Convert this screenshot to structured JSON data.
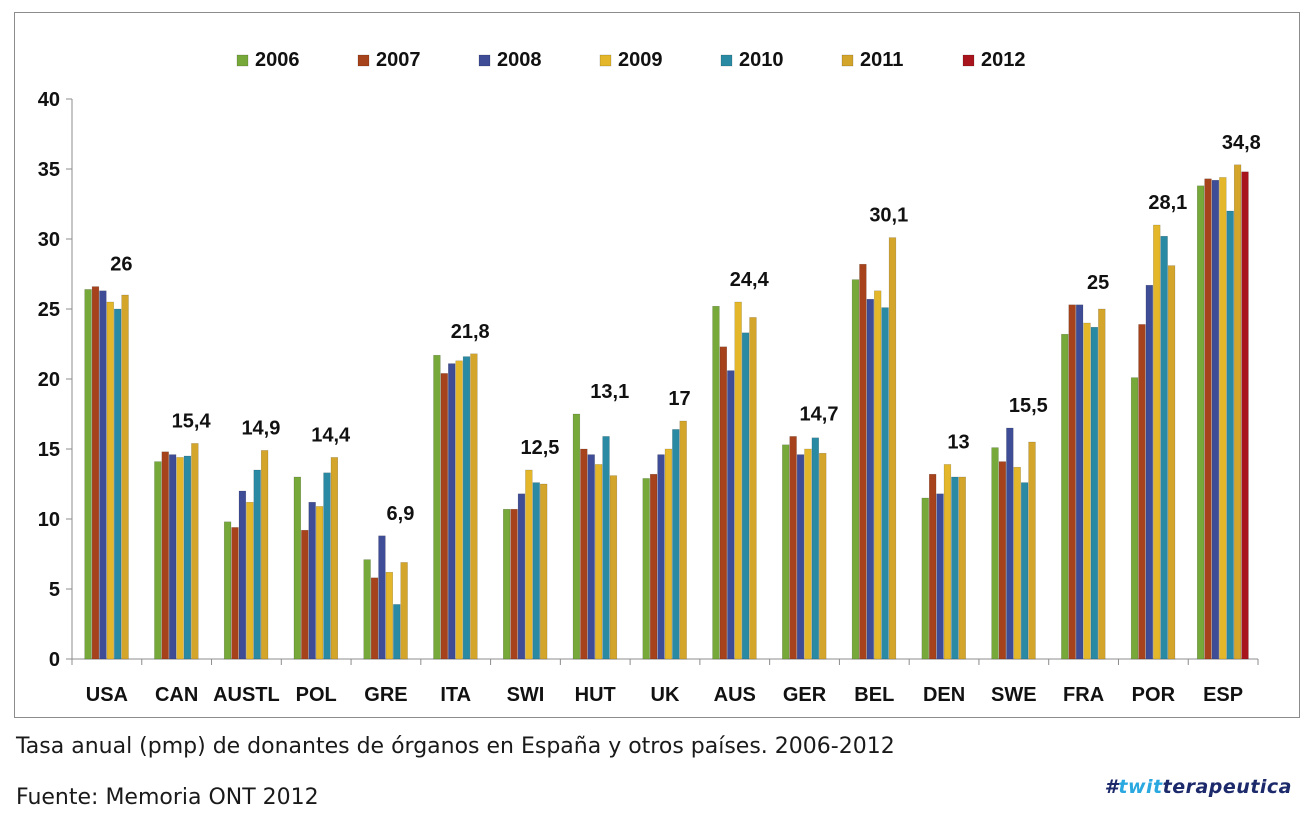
{
  "chart_data": {
    "type": "bar",
    "categories": [
      "USA",
      "CAN",
      "AUSTL",
      "POL",
      "GRE",
      "ITA",
      "SWI",
      "HUT",
      "UK",
      "AUS",
      "GER",
      "BEL",
      "DEN",
      "SWE",
      "FRA",
      "POR",
      "ESP"
    ],
    "series": [
      {
        "name": "2006",
        "color": "#77a83a",
        "values": [
          26.4,
          14.1,
          9.8,
          13.0,
          7.1,
          21.7,
          10.7,
          17.5,
          12.9,
          25.2,
          15.3,
          27.1,
          11.5,
          15.1,
          23.2,
          20.1,
          33.8
        ]
      },
      {
        "name": "2007",
        "color": "#a6431c",
        "values": [
          26.6,
          14.8,
          9.4,
          9.2,
          5.8,
          20.4,
          10.7,
          15.0,
          13.2,
          22.3,
          15.9,
          28.2,
          13.2,
          14.1,
          25.3,
          23.9,
          34.3
        ]
      },
      {
        "name": "2008",
        "color": "#3f4d96",
        "values": [
          26.3,
          14.6,
          12.0,
          11.2,
          8.8,
          21.1,
          11.8,
          14.6,
          14.6,
          20.6,
          14.6,
          25.7,
          11.8,
          16.5,
          25.3,
          26.7,
          34.2
        ]
      },
      {
        "name": "2009",
        "color": "#e3b729",
        "values": [
          25.5,
          14.4,
          11.2,
          10.9,
          6.2,
          21.3,
          13.5,
          13.9,
          15.0,
          25.5,
          15.0,
          26.3,
          13.9,
          13.7,
          24.0,
          31.0,
          34.4
        ]
      },
      {
        "name": "2010",
        "color": "#2a8aa3",
        "values": [
          25.0,
          14.5,
          13.5,
          13.3,
          3.9,
          21.6,
          12.6,
          15.9,
          16.4,
          23.3,
          15.8,
          25.1,
          13.0,
          12.6,
          23.7,
          30.2,
          32.0
        ]
      },
      {
        "name": "2011",
        "color": "#d4a52b",
        "values": [
          26.0,
          15.4,
          14.9,
          14.4,
          6.9,
          21.8,
          12.5,
          13.1,
          17.0,
          24.4,
          14.7,
          30.1,
          13.0,
          15.5,
          25.0,
          28.1,
          35.3
        ]
      },
      {
        "name": "2012",
        "color": "#a8151d",
        "values": [
          null,
          null,
          null,
          null,
          null,
          null,
          null,
          null,
          null,
          null,
          null,
          null,
          null,
          null,
          null,
          null,
          34.8
        ]
      }
    ],
    "data_labels": [
      "26",
      "15,4",
      "14,9",
      "14,4",
      "6,9",
      "21,8",
      "12,5",
      "13,1",
      "17",
      "24,4",
      "14,7",
      "30,1",
      "13",
      "15,5",
      "25",
      "28,1",
      "34,8"
    ],
    "yticks": [
      "0",
      "5",
      "10",
      "15",
      "20",
      "25",
      "30",
      "35",
      "40"
    ],
    "ylim": [
      0,
      40
    ],
    "legend_position": "top",
    "title": "",
    "xlabel": "",
    "ylabel": ""
  },
  "caption": "Tasa anual (pmp) de donantes de órganos en España y otros países. 2006-2012",
  "source": "Fuente: Memoria ONT 2012",
  "brand": {
    "hash": "#",
    "part1": "twit",
    "part2": "terapeutica"
  }
}
